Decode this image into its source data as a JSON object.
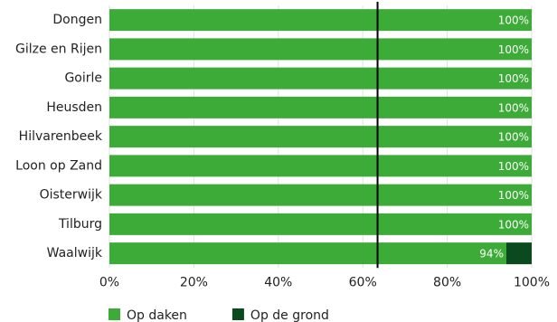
{
  "chart_data": {
    "type": "stacked-bar-horizontal",
    "categories": [
      "Dongen",
      "Gilze en Rijen",
      "Goirle",
      "Heusden",
      "Hilvarenbeek",
      "Loon op Zand",
      "Oisterwijk",
      "Tilburg",
      "Waalwijk"
    ],
    "series": [
      {
        "name": "Op daken",
        "color": "#3cab37",
        "values": [
          100,
          100,
          100,
          100,
          100,
          100,
          100,
          100,
          94
        ],
        "value_labels": [
          "100%",
          "100%",
          "100%",
          "100%",
          "100%",
          "100%",
          "100%",
          "100%",
          "94%"
        ]
      },
      {
        "name": "Op de grond",
        "color": "#0b4a1f",
        "values": [
          0,
          0,
          0,
          0,
          0,
          0,
          0,
          0,
          6
        ]
      }
    ],
    "xlim": [
      0,
      100
    ],
    "xticks": [
      {
        "value": 0,
        "label": "0%"
      },
      {
        "value": 20,
        "label": "20%"
      },
      {
        "value": 40,
        "label": "40%"
      },
      {
        "value": 60,
        "label": "60%"
      },
      {
        "value": 80,
        "label": "80%"
      },
      {
        "value": 100,
        "label": "100%"
      }
    ],
    "reference_line": 63.5,
    "grid": true,
    "legend": "bottom"
  }
}
